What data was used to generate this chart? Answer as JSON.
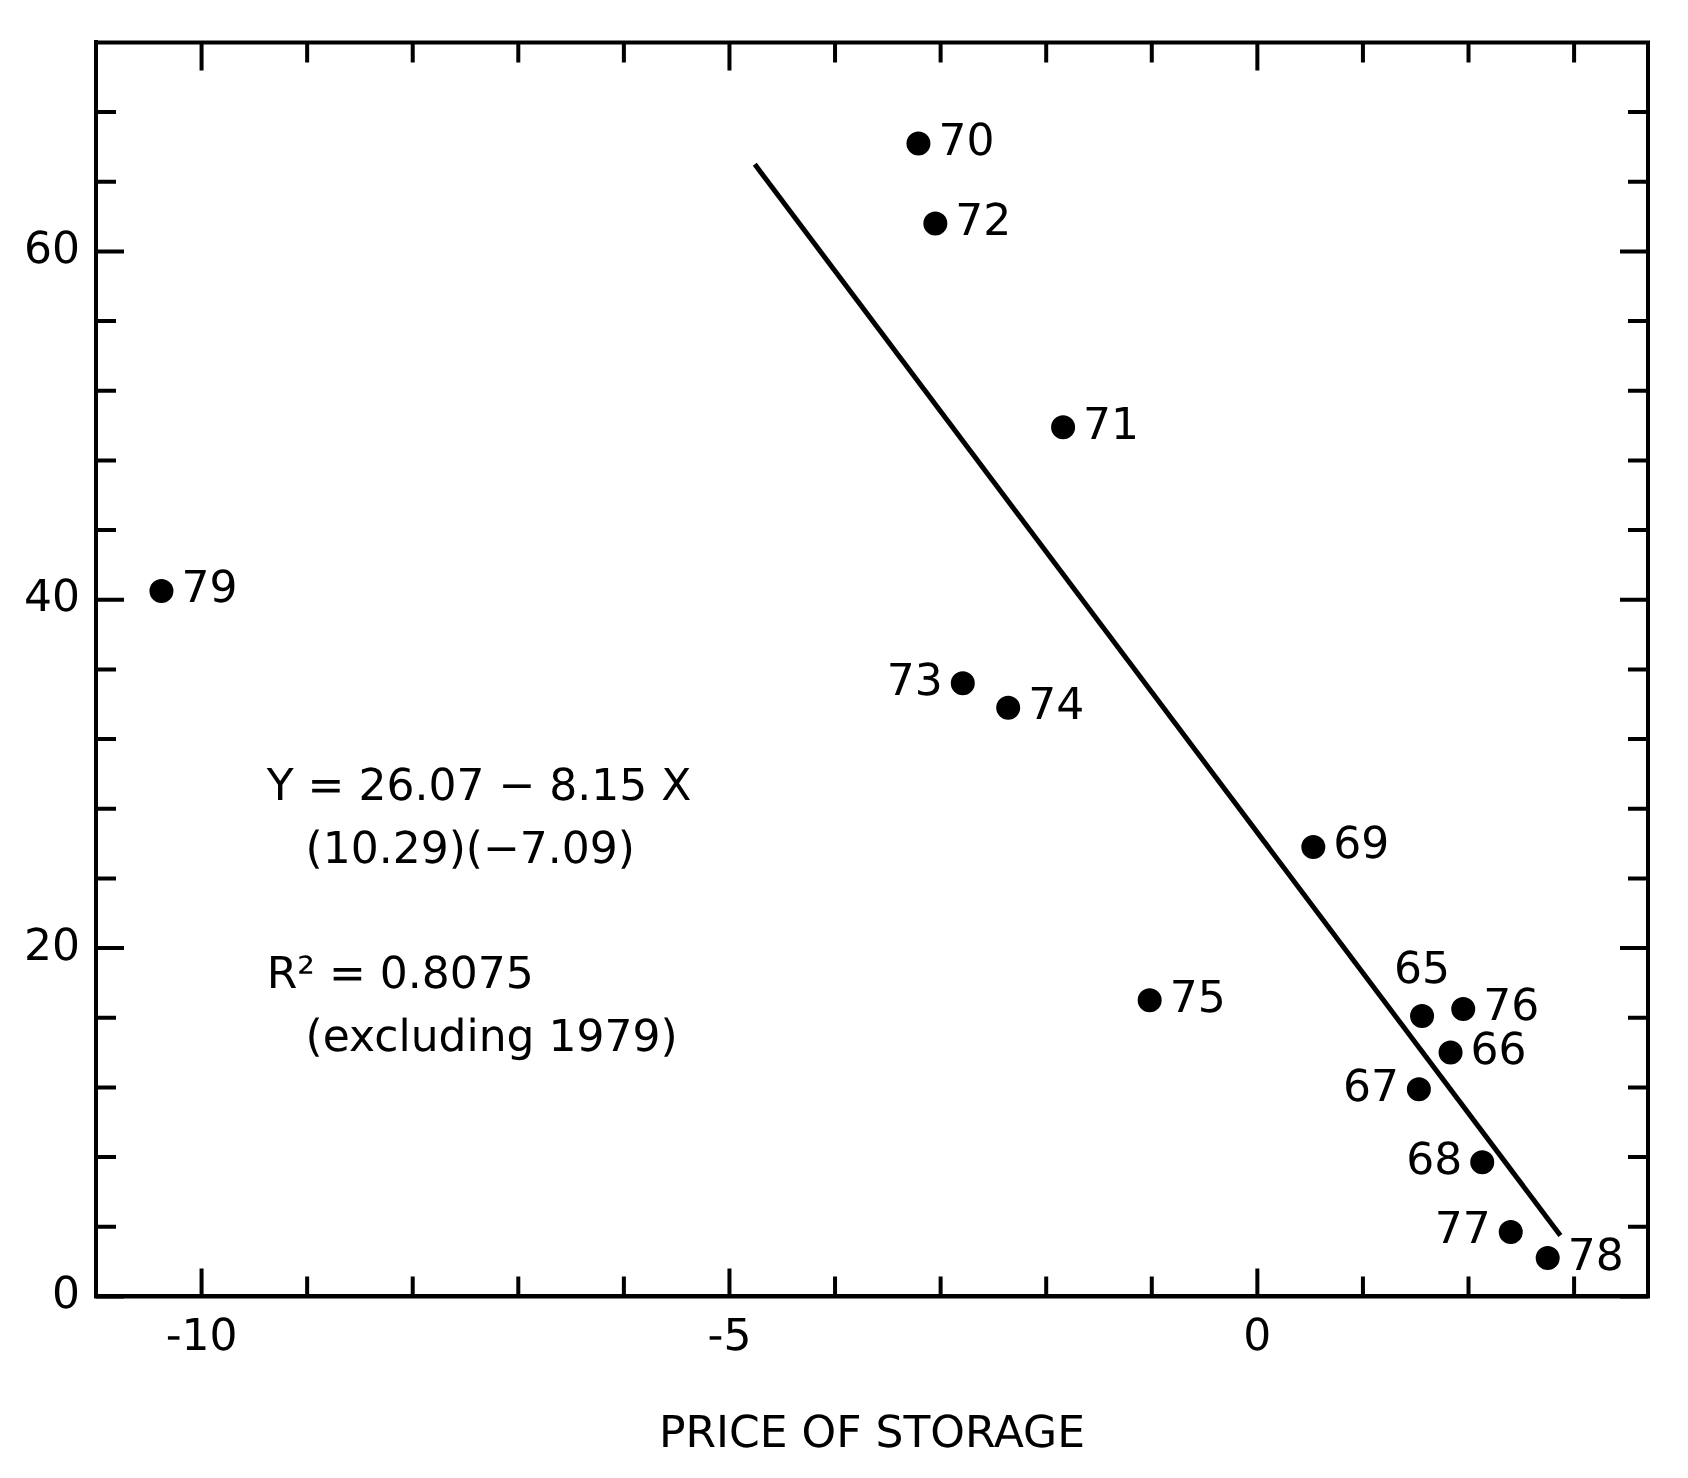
{
  "chart_data": {
    "type": "scatter",
    "xlabel": "PRICE OF STORAGE",
    "xlim": [
      -11,
      3.7
    ],
    "ylim": [
      0,
      72
    ],
    "xticks": [
      {
        "value": -10,
        "label": "-10"
      },
      {
        "value": -9,
        "label": null
      },
      {
        "value": -8,
        "label": null
      },
      {
        "value": -7,
        "label": null
      },
      {
        "value": -6,
        "label": null
      },
      {
        "value": -5,
        "label": "-5"
      },
      {
        "value": -4,
        "label": null
      },
      {
        "value": -3,
        "label": null
      },
      {
        "value": -2,
        "label": null
      },
      {
        "value": -1,
        "label": null
      },
      {
        "value": 0,
        "label": "0"
      },
      {
        "value": 1,
        "label": null
      },
      {
        "value": 2,
        "label": null
      },
      {
        "value": 3,
        "label": null
      }
    ],
    "yticks": [
      0,
      {
        "value": 4,
        "label": null
      },
      {
        "value": 8,
        "label": null
      },
      {
        "value": 12,
        "label": null
      },
      {
        "value": 16,
        "label": null
      },
      20,
      {
        "value": 24,
        "label": null
      },
      {
        "value": 28,
        "label": null
      },
      {
        "value": 32,
        "label": null
      },
      {
        "value": 36,
        "label": null
      },
      40,
      {
        "value": 44,
        "label": null
      },
      {
        "value": 48,
        "label": null
      },
      {
        "value": 52,
        "label": null
      },
      {
        "value": 56,
        "label": null
      },
      60,
      {
        "value": 64,
        "label": null
      },
      {
        "value": 68,
        "label": null
      }
    ],
    "grid": false,
    "legend": false,
    "marker": "circle",
    "series": [
      {
        "color": "#000000",
        "x": [
          -3.21,
          -3.05,
          -1.84,
          -10.38,
          -2.79,
          -2.36,
          0.53,
          -1.02,
          1.56,
          1.95,
          1.83,
          1.53,
          2.13,
          2.4,
          2.75
        ],
        "values": [
          66.2,
          61.6,
          49.9,
          40.5,
          35.2,
          33.8,
          25.8,
          17.0,
          16.1,
          16.5,
          14.0,
          11.9,
          7.7,
          3.7,
          2.2
        ]
      },
      {
        "type": "line",
        "color": "#000000",
        "line_style": "solid",
        "marker": "none",
        "x": [
          -4.76,
          2.87
        ],
        "values": [
          65.0,
          3.5
        ]
      }
    ],
    "annotations": [
      {
        "text": "70",
        "x": -3.21,
        "y": 66.2
      },
      {
        "text": "72",
        "x": -3.05,
        "y": 61.6
      },
      {
        "text": "71",
        "x": -1.84,
        "y": 49.9
      },
      {
        "text": "79",
        "x": -10.38,
        "y": 40.5
      },
      {
        "text": "73",
        "x": -2.79,
        "y": 35.2
      },
      {
        "text": "74",
        "x": -2.36,
        "y": 33.8
      },
      {
        "text": "69",
        "x": 0.53,
        "y": 25.8
      },
      {
        "text": "75",
        "x": -1.02,
        "y": 17.0
      },
      {
        "text": "65",
        "x": 1.56,
        "y": 16.1
      },
      {
        "text": "76",
        "x": 1.95,
        "y": 16.5
      },
      {
        "text": "66",
        "x": 1.83,
        "y": 14.0
      },
      {
        "text": "67",
        "x": 1.53,
        "y": 11.9
      },
      {
        "text": "68",
        "x": 2.13,
        "y": 7.7
      },
      {
        "text": "77",
        "x": 2.4,
        "y": 3.7
      },
      {
        "text": "78",
        "x": 2.75,
        "y": 2.2
      },
      "Y = 26.07 − 8.15 X",
      "(10.29)(−7.09)",
      "R² = 0.8075",
      "(excluding 1979)"
    ]
  }
}
